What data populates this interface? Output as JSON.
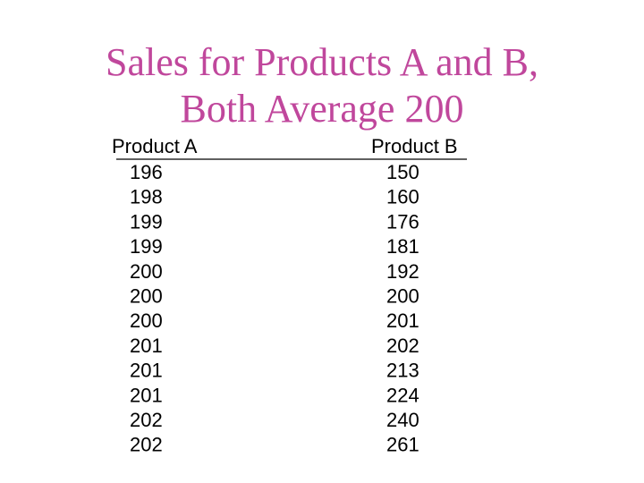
{
  "title": {
    "lines": [
      "Sales for Products A and B,",
      "Both Average 200"
    ]
  },
  "table": {
    "headers": [
      "Product A",
      "Product B"
    ],
    "rows": [
      [
        196,
        150
      ],
      [
        198,
        160
      ],
      [
        199,
        176
      ],
      [
        199,
        181
      ],
      [
        200,
        192
      ],
      [
        200,
        200
      ],
      [
        200,
        201
      ],
      [
        201,
        202
      ],
      [
        201,
        213
      ],
      [
        201,
        224
      ],
      [
        202,
        240
      ],
      [
        202,
        261
      ]
    ]
  }
}
